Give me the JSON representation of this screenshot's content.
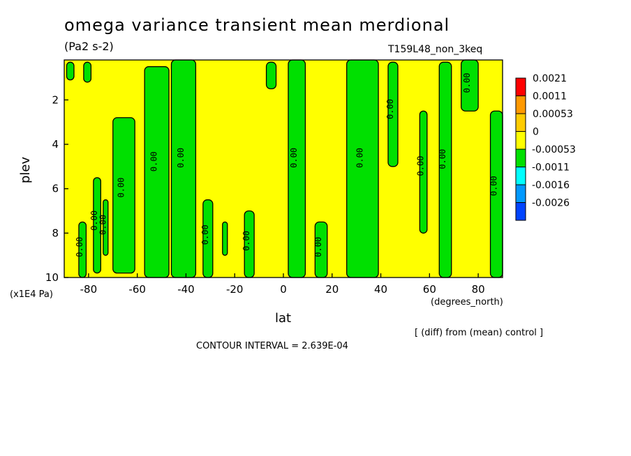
{
  "title": "omega variance transient mean merdional",
  "units": "(Pa2 s-2)",
  "run_name": "T159L48_non_3keq",
  "x_units": "(degrees_north)",
  "y_units": "(x1E4 Pa)",
  "note": "[ (diff) from (mean) control ]",
  "contour_interval": "CONTOUR INTERVAL = 2.639E-04",
  "colors": {
    "neutral": "#ffff00",
    "negative": "#00e000",
    "line": "#000000"
  },
  "chart_data": {
    "type": "heatmap",
    "xlabel": "lat",
    "ylabel": "plev",
    "xlim": [
      -90,
      90
    ],
    "ylim": [
      10,
      0.2
    ],
    "xticks": [
      -80,
      -60,
      -40,
      -20,
      0,
      20,
      40,
      60,
      80
    ],
    "yticks": [
      2,
      4,
      6,
      8,
      10
    ],
    "legend": {
      "placement": "right",
      "levels": [
        "0.0021",
        "0.0011",
        "0.00053",
        "0",
        "-0.00053",
        "-0.0011",
        "-0.0016",
        "-0.0026"
      ],
      "colors": [
        "#ff0000",
        "#ff9900",
        "#ffcc00",
        "#ffff00",
        "#00e000",
        "#00ffff",
        "#0099ff",
        "#0044ff"
      ]
    },
    "contour_label": "0.00",
    "negative_regions": [
      {
        "lat": [
          -89,
          -86
        ],
        "plev": [
          0.3,
          1.1
        ]
      },
      {
        "lat": [
          -82,
          -79
        ],
        "plev": [
          0.3,
          1.2
        ]
      },
      {
        "lat": [
          -84,
          -81
        ],
        "plev": [
          7.5,
          10
        ]
      },
      {
        "lat": [
          -78,
          -75
        ],
        "plev": [
          5.5,
          9.8
        ]
      },
      {
        "lat": [
          -74,
          -72
        ],
        "plev": [
          6.5,
          9
        ]
      },
      {
        "lat": [
          -70,
          -61
        ],
        "plev": [
          2.8,
          9.8
        ]
      },
      {
        "lat": [
          -57,
          -47
        ],
        "plev": [
          0.5,
          10
        ]
      },
      {
        "lat": [
          -46,
          -36
        ],
        "plev": [
          0.2,
          10
        ]
      },
      {
        "lat": [
          -33,
          -29
        ],
        "plev": [
          6.5,
          10
        ]
      },
      {
        "lat": [
          -25,
          -23
        ],
        "plev": [
          7.5,
          9
        ]
      },
      {
        "lat": [
          -16,
          -12
        ],
        "plev": [
          7,
          10
        ]
      },
      {
        "lat": [
          -7,
          -3
        ],
        "plev": [
          0.3,
          1.5
        ]
      },
      {
        "lat": [
          2,
          9
        ],
        "plev": [
          0.2,
          10
        ]
      },
      {
        "lat": [
          13,
          18
        ],
        "plev": [
          7.5,
          10
        ]
      },
      {
        "lat": [
          26,
          39
        ],
        "plev": [
          0.2,
          10
        ]
      },
      {
        "lat": [
          43,
          47
        ],
        "plev": [
          0.3,
          5
        ]
      },
      {
        "lat": [
          56,
          59
        ],
        "plev": [
          2.5,
          8
        ]
      },
      {
        "lat": [
          64,
          69
        ],
        "plev": [
          0.3,
          10
        ]
      },
      {
        "lat": [
          73,
          80
        ],
        "plev": [
          0.2,
          2.5
        ]
      },
      {
        "lat": [
          85,
          90
        ],
        "plev": [
          2.5,
          10
        ]
      }
    ]
  }
}
